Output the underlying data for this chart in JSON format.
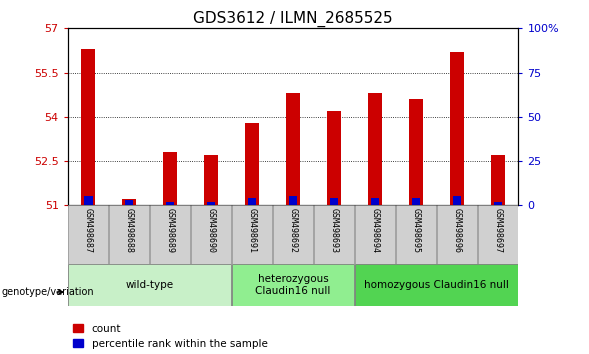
{
  "title": "GDS3612 / ILMN_2685525",
  "samples": [
    "GSM498687",
    "GSM498688",
    "GSM498689",
    "GSM498690",
    "GSM498691",
    "GSM498692",
    "GSM498693",
    "GSM498694",
    "GSM498695",
    "GSM498696",
    "GSM498697"
  ],
  "count_values": [
    56.3,
    51.2,
    52.8,
    52.7,
    53.8,
    54.8,
    54.2,
    54.8,
    54.6,
    56.2,
    52.7
  ],
  "percentile_values": [
    5,
    3,
    2,
    2,
    4,
    5,
    4,
    4,
    4,
    5,
    2
  ],
  "baseline": 51.0,
  "ylim_left": [
    51.0,
    57.0
  ],
  "ylim_right": [
    0,
    100
  ],
  "yticks_left": [
    51,
    52.5,
    54,
    55.5,
    57
  ],
  "yticks_right": [
    0,
    25,
    50,
    75,
    100
  ],
  "ytick_labels_left": [
    "51",
    "52.5",
    "54",
    "55.5",
    "57"
  ],
  "ytick_labels_right": [
    "0",
    "25",
    "50",
    "75",
    "100%"
  ],
  "groups": [
    {
      "label": "wild-type",
      "indices": [
        0,
        1,
        2,
        3
      ],
      "color": "#c8f0c8"
    },
    {
      "label": "heterozygous\nClaudin16 null",
      "indices": [
        4,
        5,
        6
      ],
      "color": "#90ee90"
    },
    {
      "label": "homozygous Claudin16 null",
      "indices": [
        7,
        8,
        9,
        10
      ],
      "color": "#52d452"
    }
  ],
  "bar_color_red": "#cc0000",
  "bar_color_blue": "#0000cc",
  "bar_width": 0.35,
  "genotype_label": "genotype/variation",
  "legend_count": "count",
  "legend_percentile": "percentile rank within the sample",
  "tick_color_left": "#cc0000",
  "tick_color_right": "#0000cc",
  "title_fontsize": 11
}
